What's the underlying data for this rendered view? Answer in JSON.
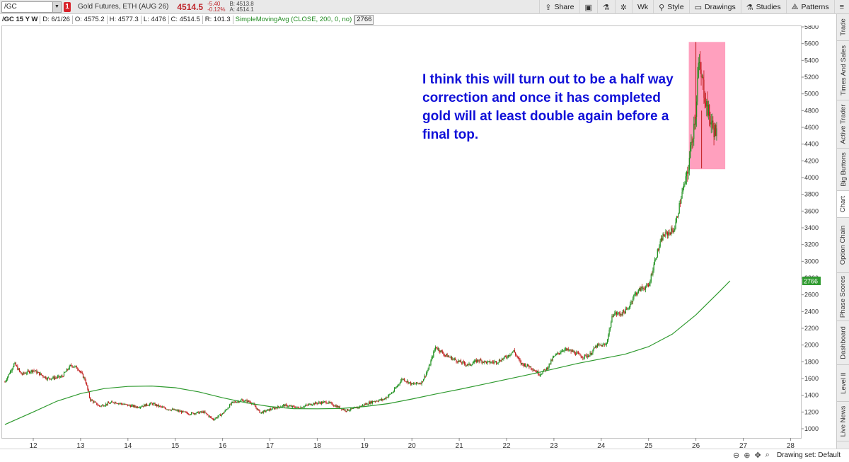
{
  "toolbar": {
    "symbol": "/GC",
    "badge": "1",
    "description": "Gold Futures, ETH (AUG 26)",
    "last": "4514.5",
    "change_net": "-5.40",
    "change_pct": "-0.12%",
    "bid": "B: 4513.8",
    "ask": "A: 4514.1",
    "share_label": "Share",
    "period_label": "Wk",
    "style_label": "Style",
    "drawings_label": "Drawings",
    "studies_label": "Studies",
    "patterns_label": "Patterns"
  },
  "infobar": {
    "symbol": "/GC 15 Y W",
    "date": "D: 6/1/26",
    "open": "O: 4575.2",
    "high": "H: 4577.3",
    "low": "L: 4476",
    "close": "C: 4514.5",
    "range": "R: 101.3",
    "study": "SimpleMovingAvg (CLOSE, 200, 0, no)",
    "study_value": "2766"
  },
  "side_tabs": [
    "Trade",
    "Times And Sales",
    "Active Trader",
    "Big Buttons",
    "Chart",
    "Option Chain",
    "Phase Scores",
    "Dashboard",
    "Level II",
    "Live News"
  ],
  "active_side_tab": "Chart",
  "annotation": "I think this will turn out to be a half way correction and once it has completed gold will at least double again before a final top.",
  "bottom": {
    "drawing_set": "Drawing set: Default"
  },
  "colors": {
    "up": "#1b8f1b",
    "down": "#c01a1a",
    "sma": "#2f9a2f",
    "highlight": "#ff8fb3",
    "annotation": "#1010d8"
  },
  "chart_data": {
    "type": "candlestick",
    "x_ticks": [
      "12",
      "13",
      "14",
      "15",
      "16",
      "17",
      "18",
      "19",
      "20",
      "21",
      "22",
      "23",
      "24",
      "25",
      "26",
      "27",
      "28"
    ],
    "y_ticks": [
      1000,
      1200,
      1400,
      1600,
      1800,
      2000,
      2200,
      2400,
      2600,
      2800,
      3000,
      3200,
      3400,
      3600,
      3800,
      4000,
      4200,
      4400,
      4600,
      4800,
      5000,
      5200,
      5400,
      5600,
      5800
    ],
    "ylim": [
      900,
      5850
    ],
    "xlim": [
      11.4,
      28.3
    ],
    "price_path": [
      [
        11.4,
        1560
      ],
      [
        11.6,
        1780
      ],
      [
        11.75,
        1650
      ],
      [
        12.0,
        1700
      ],
      [
        12.3,
        1600
      ],
      [
        12.6,
        1620
      ],
      [
        12.8,
        1760
      ],
      [
        12.95,
        1720
      ],
      [
        13.1,
        1580
      ],
      [
        13.2,
        1350
      ],
      [
        13.4,
        1270
      ],
      [
        13.7,
        1320
      ],
      [
        14.0,
        1280
      ],
      [
        14.2,
        1260
      ],
      [
        14.5,
        1300
      ],
      [
        14.8,
        1240
      ],
      [
        15.0,
        1220
      ],
      [
        15.3,
        1180
      ],
      [
        15.6,
        1200
      ],
      [
        15.8,
        1110
      ],
      [
        16.0,
        1180
      ],
      [
        16.2,
        1310
      ],
      [
        16.4,
        1340
      ],
      [
        16.6,
        1320
      ],
      [
        16.8,
        1190
      ],
      [
        17.0,
        1230
      ],
      [
        17.3,
        1280
      ],
      [
        17.6,
        1250
      ],
      [
        17.9,
        1300
      ],
      [
        18.2,
        1320
      ],
      [
        18.4,
        1270
      ],
      [
        18.6,
        1220
      ],
      [
        18.8,
        1240
      ],
      [
        19.0,
        1290
      ],
      [
        19.2,
        1330
      ],
      [
        19.4,
        1350
      ],
      [
        19.6,
        1440
      ],
      [
        19.8,
        1600
      ],
      [
        20.0,
        1530
      ],
      [
        20.2,
        1550
      ],
      [
        20.35,
        1720
      ],
      [
        20.5,
        1980
      ],
      [
        20.7,
        1880
      ],
      [
        21.0,
        1800
      ],
      [
        21.2,
        1760
      ],
      [
        21.4,
        1820
      ],
      [
        21.6,
        1790
      ],
      [
        21.8,
        1800
      ],
      [
        22.0,
        1860
      ],
      [
        22.15,
        1930
      ],
      [
        22.3,
        1780
      ],
      [
        22.5,
        1740
      ],
      [
        22.7,
        1650
      ],
      [
        22.85,
        1720
      ],
      [
        23.0,
        1860
      ],
      [
        23.2,
        1950
      ],
      [
        23.4,
        1920
      ],
      [
        23.6,
        1860
      ],
      [
        23.75,
        1880
      ],
      [
        23.9,
        1990
      ],
      [
        24.1,
        2000
      ],
      [
        24.25,
        2380
      ],
      [
        24.4,
        2370
      ],
      [
        24.55,
        2420
      ],
      [
        24.7,
        2600
      ],
      [
        24.85,
        2680
      ],
      [
        25.0,
        2700
      ],
      [
        25.15,
        3050
      ],
      [
        25.3,
        3300
      ],
      [
        25.45,
        3350
      ],
      [
        25.55,
        3390
      ],
      [
        25.7,
        3800
      ],
      [
        25.82,
        4050
      ],
      [
        25.9,
        4400
      ],
      [
        26.0,
        4800
      ],
      [
        26.05,
        5350
      ],
      [
        26.15,
        5100
      ],
      [
        26.25,
        4800
      ],
      [
        26.35,
        4600
      ],
      [
        26.45,
        4514
      ]
    ],
    "sma_path": [
      [
        11.4,
        1050
      ],
      [
        12.0,
        1200
      ],
      [
        12.5,
        1330
      ],
      [
        13.0,
        1420
      ],
      [
        13.5,
        1480
      ],
      [
        14.0,
        1505
      ],
      [
        14.5,
        1510
      ],
      [
        15.0,
        1490
      ],
      [
        15.5,
        1440
      ],
      [
        16.0,
        1370
      ],
      [
        16.5,
        1310
      ],
      [
        17.0,
        1265
      ],
      [
        17.5,
        1240
      ],
      [
        18.0,
        1238
      ],
      [
        18.5,
        1242
      ],
      [
        19.0,
        1265
      ],
      [
        19.5,
        1300
      ],
      [
        20.0,
        1355
      ],
      [
        20.5,
        1415
      ],
      [
        21.0,
        1470
      ],
      [
        21.5,
        1530
      ],
      [
        22.0,
        1590
      ],
      [
        22.5,
        1650
      ],
      [
        23.0,
        1715
      ],
      [
        23.5,
        1780
      ],
      [
        24.0,
        1835
      ],
      [
        24.5,
        1890
      ],
      [
        25.0,
        1980
      ],
      [
        25.5,
        2130
      ],
      [
        26.0,
        2360
      ],
      [
        26.5,
        2640
      ],
      [
        26.72,
        2766
      ]
    ],
    "highlight_box": {
      "x0": 25.85,
      "x1": 26.62,
      "y0": 4100,
      "y1": 5620
    },
    "last_sma_label": "2766"
  }
}
